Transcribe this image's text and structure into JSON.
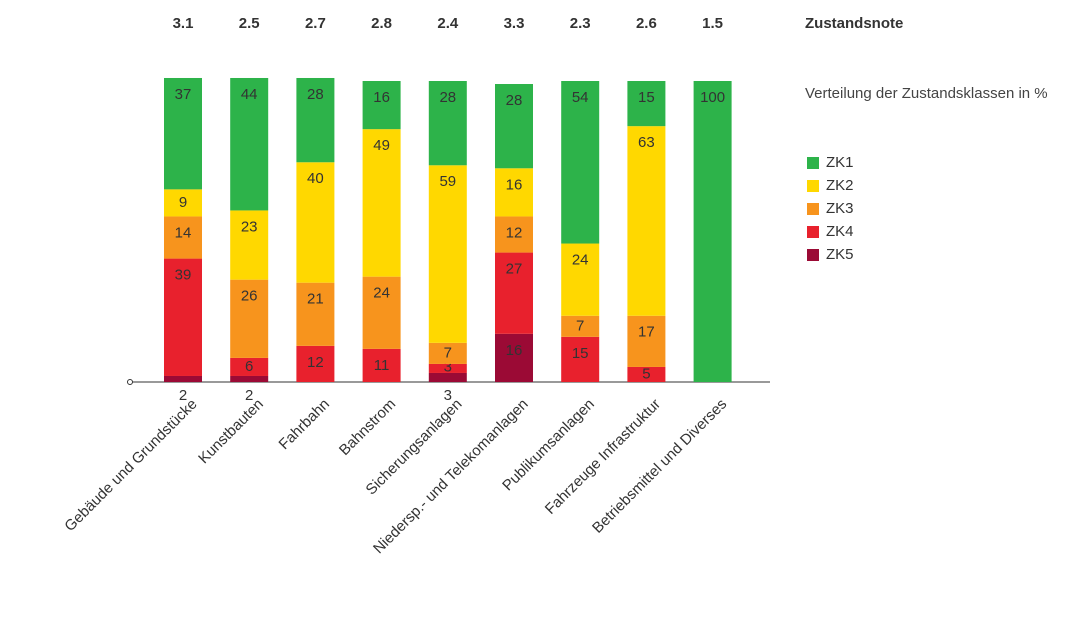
{
  "chart_data": {
    "type": "stacked_bar",
    "note_title": "Zustandsnote",
    "legend_title": "Verteilung der Zustandsklassen in %",
    "categories": [
      "Gebäude und Grundstücke",
      "Kunstbauten",
      "Fahrbahn",
      "Bahnstrom",
      "Sicherungsanlagen",
      "Niedersp.- und Telekomanlagen",
      "Publikumsanlagen",
      "Fahrzeuge Infrastruktur",
      "Betriebsmittel und Diverses"
    ],
    "notes": [
      3.1,
      2.5,
      2.7,
      2.8,
      2.4,
      3.3,
      2.3,
      2.6,
      1.5
    ],
    "ylim": [
      0,
      100
    ],
    "series": [
      {
        "name": "ZK1",
        "color": "#2db34a",
        "values": [
          37,
          44,
          28,
          16,
          28,
          28,
          54,
          15,
          100
        ]
      },
      {
        "name": "ZK2",
        "color": "#ffd800",
        "values": [
          9,
          23,
          40,
          49,
          59,
          16,
          24,
          63,
          null
        ]
      },
      {
        "name": "ZK3",
        "color": "#f7941d",
        "values": [
          14,
          26,
          21,
          24,
          7,
          12,
          7,
          17,
          null
        ]
      },
      {
        "name": "ZK4",
        "color": "#e8212d",
        "values": [
          39,
          6,
          12,
          11,
          3,
          27,
          15,
          5,
          null
        ]
      },
      {
        "name": "ZK5",
        "color": "#9b0a35",
        "values": [
          2,
          2,
          null,
          null,
          3,
          16,
          null,
          null,
          null
        ]
      }
    ]
  }
}
